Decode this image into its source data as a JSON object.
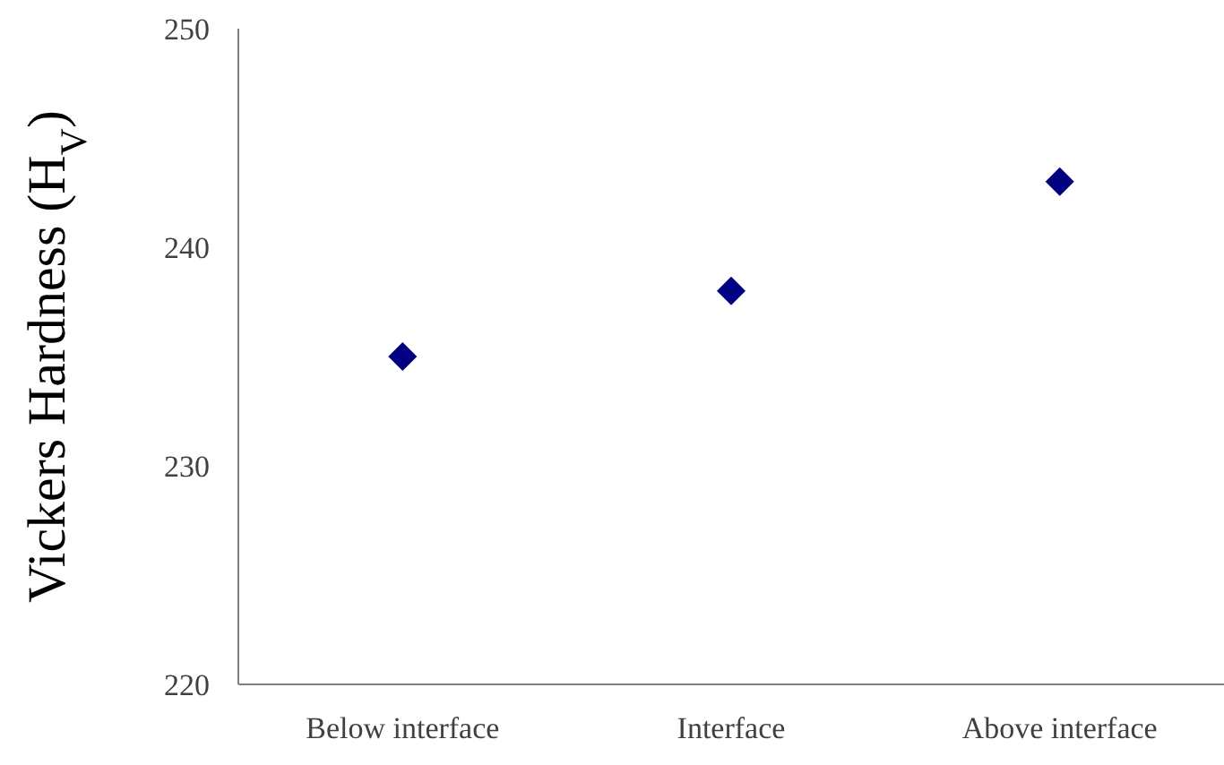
{
  "chart_data": {
    "type": "scatter",
    "ylabel": "Vickers Hardness (H$_{V}$)",
    "categories": [
      "Below interface",
      "Interface",
      "Above interface"
    ],
    "series": [
      {
        "color": "#000080",
        "values": [
          235,
          238,
          243
        ]
      }
    ],
    "ylim": [
      220,
      250
    ],
    "yticks": [
      220,
      230,
      240,
      250
    ],
    "grid": false,
    "legend": false,
    "marker": "diamond"
  }
}
